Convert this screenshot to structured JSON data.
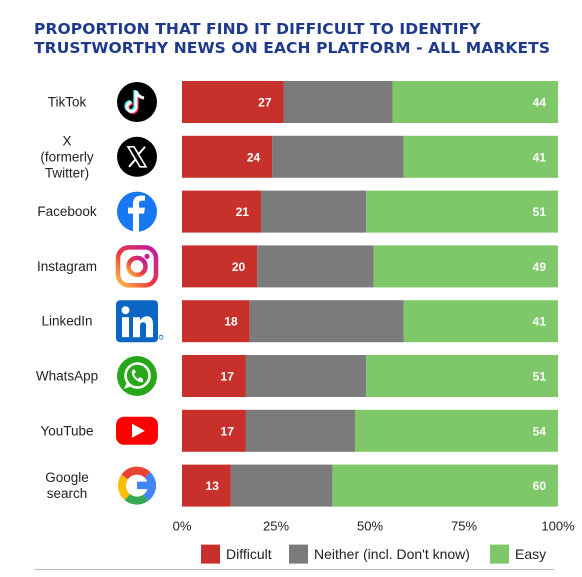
{
  "title_lines": [
    "PROPORTION THAT FIND IT DIFFICULT TO IDENTIFY",
    "TRUSTWORTHY NEWS ON EACH PLATFORM - ALL MARKETS"
  ],
  "colors": {
    "difficult": "#c8312b",
    "neither": "#7b7b7b",
    "easy": "#7ec86a",
    "title": "#1f3a8a"
  },
  "chart_data": {
    "type": "bar",
    "orientation": "horizontal",
    "stacked": true,
    "categories": [
      [
        "TikTok"
      ],
      [
        "X",
        "(formerly",
        "Twitter)"
      ],
      [
        "Facebook"
      ],
      [
        "Instagram"
      ],
      [
        "LinkedIn"
      ],
      [
        "WhatsApp"
      ],
      [
        "YouTube"
      ],
      [
        "Google",
        "search"
      ]
    ],
    "icons": [
      "tiktok-logo-icon",
      "x-logo-icon",
      "facebook-logo-icon",
      "instagram-logo-icon",
      "linkedin-logo-icon",
      "whatsapp-logo-icon",
      "youtube-logo-icon",
      "google-logo-icon"
    ],
    "series": [
      {
        "name": "Difficult",
        "values": [
          27,
          24,
          21,
          20,
          18,
          17,
          17,
          13
        ]
      },
      {
        "name": "Neither (incl. Don't know)",
        "values": [
          29,
          35,
          28,
          31,
          41,
          32,
          29,
          27
        ]
      },
      {
        "name": "Easy",
        "values": [
          44,
          41,
          51,
          49,
          41,
          51,
          54,
          60
        ]
      }
    ],
    "labeled_series": [
      "Difficult",
      "Easy"
    ],
    "xlim": [
      0,
      100
    ],
    "xticks": [
      "0%",
      "25%",
      "50%",
      "75%",
      "100%"
    ],
    "legend_position": "bottom",
    "grid": false
  }
}
